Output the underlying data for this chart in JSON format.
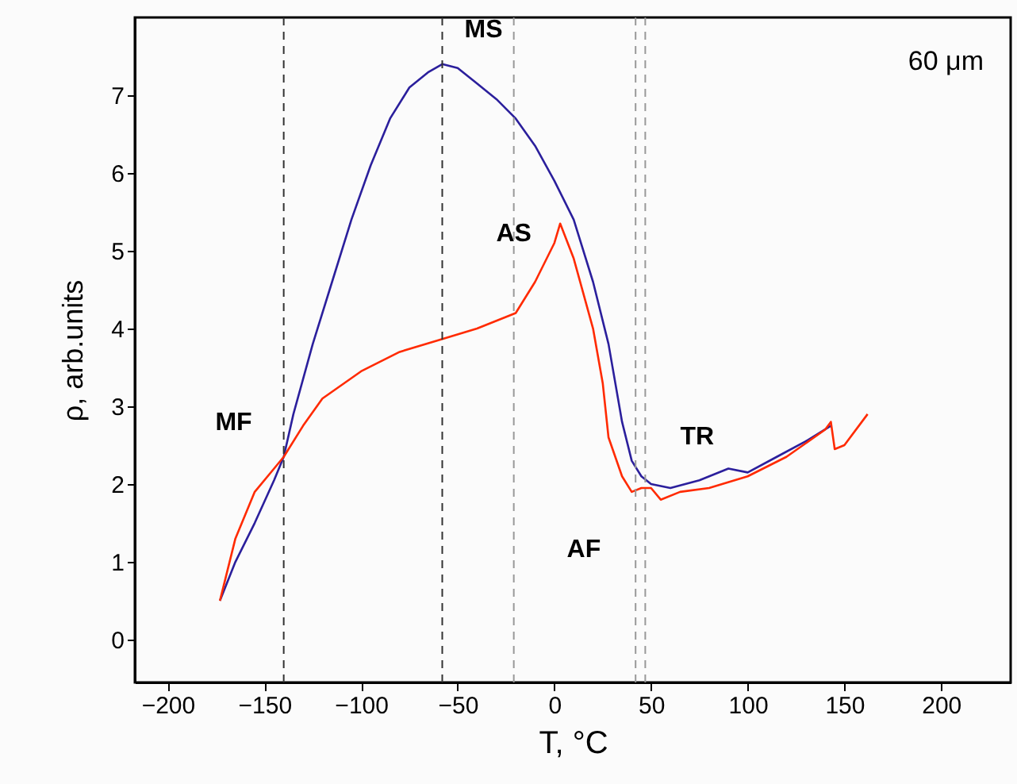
{
  "chart_data": {
    "type": "line",
    "xlabel": "T, °C",
    "ylabel": "ρ, arb.units",
    "xlim": [
      -217,
      236
    ],
    "ylim": [
      -0.55,
      8.0
    ],
    "xticks": [
      -200,
      -150,
      -100,
      -50,
      0,
      50,
      100,
      150,
      200
    ],
    "yticks": [
      0,
      1,
      2,
      3,
      4,
      5,
      6,
      7
    ],
    "marker": "none",
    "line_style": "solid",
    "series": [
      {
        "color": "#2b1f9c",
        "x": [
          -173,
          -165,
          -155,
          -145,
          -140,
          -135,
          -125,
          -115,
          -105,
          -95,
          -85,
          -75,
          -65,
          -58,
          -50,
          -40,
          -30,
          -20,
          -10,
          0,
          10,
          20,
          28,
          35,
          40,
          45,
          50,
          60,
          75,
          90,
          100,
          115,
          130,
          143
        ],
        "values": [
          0.5,
          1.0,
          1.5,
          2.05,
          2.35,
          2.9,
          3.8,
          4.6,
          5.4,
          6.1,
          6.7,
          7.1,
          7.3,
          7.4,
          7.35,
          7.15,
          6.95,
          6.7,
          6.35,
          5.9,
          5.4,
          4.6,
          3.8,
          2.8,
          2.3,
          2.1,
          2.0,
          1.95,
          2.05,
          2.2,
          2.15,
          2.35,
          2.55,
          2.75
        ]
      },
      {
        "color": "#ff2a00",
        "x": [
          -173,
          -165,
          -155,
          -145,
          -140,
          -130,
          -120,
          -100,
          -80,
          -60,
          -40,
          -20,
          -10,
          0,
          3,
          10,
          20,
          25,
          28,
          35,
          40,
          45,
          50,
          55,
          65,
          80,
          100,
          120,
          140,
          143,
          145,
          150,
          162
        ],
        "values": [
          0.5,
          1.3,
          1.9,
          2.2,
          2.35,
          2.75,
          3.1,
          3.45,
          3.7,
          3.85,
          4.0,
          4.2,
          4.6,
          5.1,
          5.35,
          4.9,
          4.0,
          3.3,
          2.6,
          2.1,
          1.9,
          1.95,
          1.95,
          1.8,
          1.9,
          1.95,
          2.1,
          2.35,
          2.7,
          2.8,
          2.45,
          2.5,
          2.9
        ]
      }
    ],
    "ref_lines": [
      {
        "axis": "x",
        "value": -140,
        "color": "#333333",
        "line_style": "dashed"
      },
      {
        "axis": "x",
        "value": -58,
        "color": "#333333",
        "line_style": "dashed"
      },
      {
        "axis": "x",
        "value": -21,
        "color": "#999999",
        "line_style": "dashed"
      },
      {
        "axis": "x",
        "value": 42,
        "color": "#999999",
        "line_style": "dashed"
      },
      {
        "axis": "x",
        "value": 47,
        "color": "#999999",
        "line_style": "dashed"
      }
    ],
    "annotations": [
      {
        "text": "MF",
        "x": -140,
        "y": 2.35
      },
      {
        "text": "MS",
        "x": -58,
        "y": 7.4
      },
      {
        "text": "AS",
        "x": -21,
        "y": 4.2
      },
      {
        "text": "AF",
        "x": 42,
        "y": 1.9
      },
      {
        "text": "TR",
        "x": 47,
        "y": 2.0
      },
      "60 μm"
    ]
  }
}
